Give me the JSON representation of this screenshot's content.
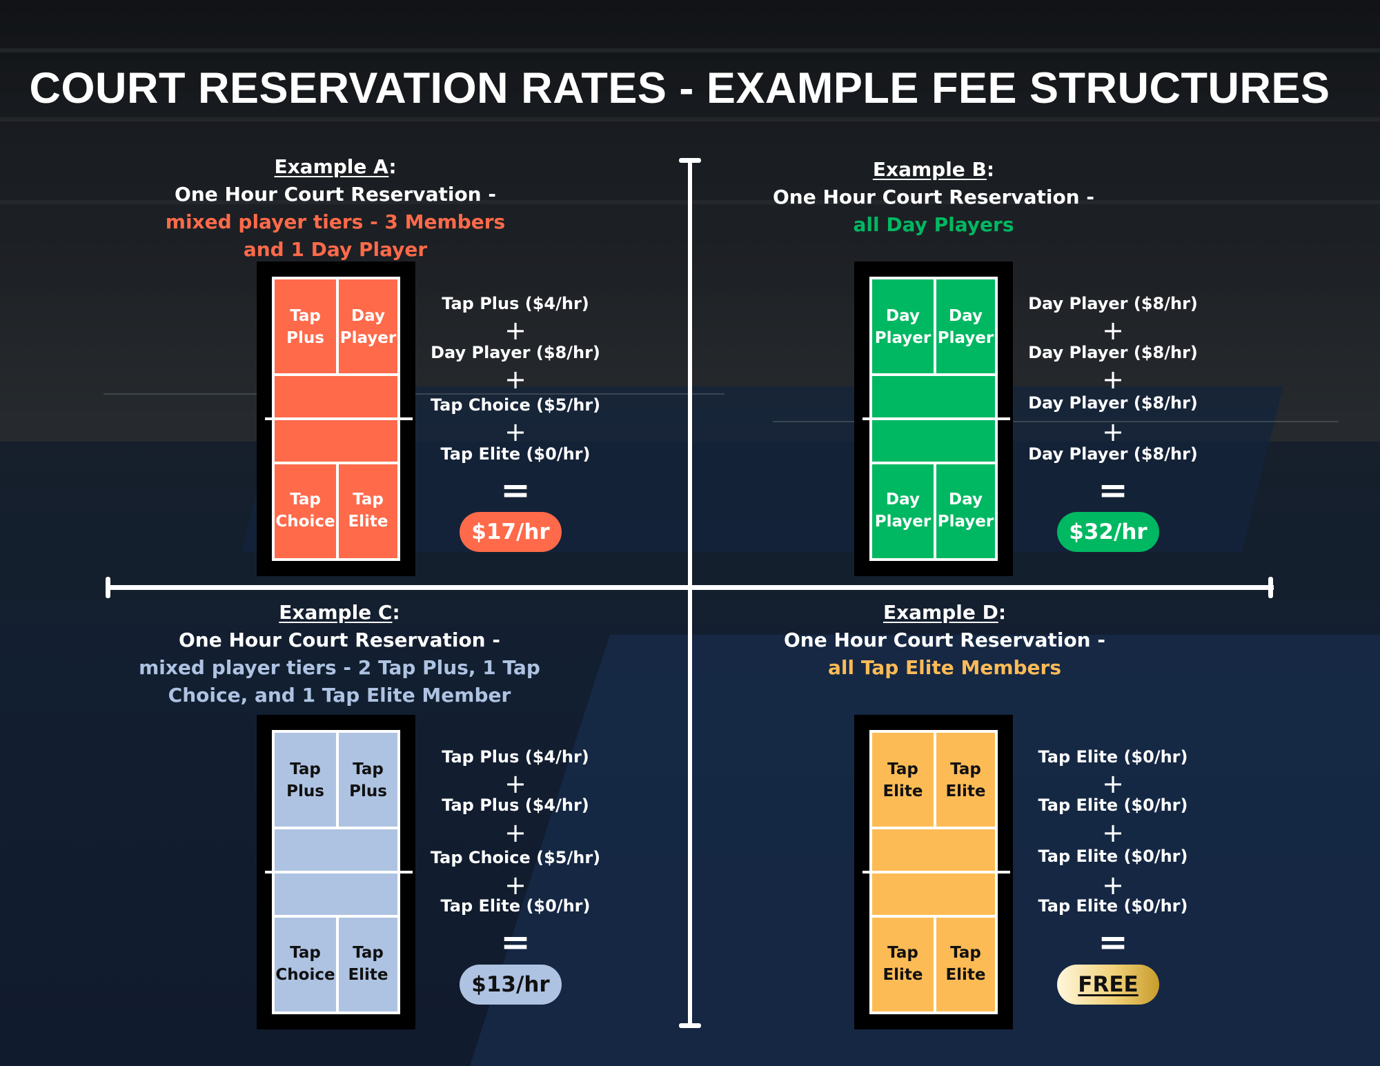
{
  "title": "COURT RESERVATION RATES - EXAMPLE FEE STRUCTURES",
  "colors": {
    "orange": "#ff6a4a",
    "green": "#00b862",
    "blue": "#aec3e2",
    "gold": "#fdbb56"
  },
  "examples": [
    {
      "id": "A",
      "label": "Example A",
      "colon": ":",
      "line1": "One Hour Court Reservation -",
      "line2": "mixed player tiers - 3 Members",
      "line3": "and 1 Day Player",
      "court": {
        "tl": [
          "Tap",
          "Plus"
        ],
        "tr": [
          "Day",
          "Player"
        ],
        "bl": [
          "Tap",
          "Choice"
        ],
        "br": [
          "Tap",
          "Elite"
        ]
      },
      "fees": [
        "Tap Plus ($4/hr)",
        "Day Player ($8/hr)",
        "Tap Choice ($5/hr)",
        "Tap Elite ($0/hr)"
      ],
      "plus": "+",
      "equals": "=",
      "total": "$17/hr"
    },
    {
      "id": "B",
      "label": "Example B",
      "colon": ":",
      "line1": "One Hour Court Reservation -",
      "line2": "all Day Players",
      "line3": "",
      "court": {
        "tl": [
          "Day",
          "Player"
        ],
        "tr": [
          "Day",
          "Player"
        ],
        "bl": [
          "Day",
          "Player"
        ],
        "br": [
          "Day",
          "Player"
        ]
      },
      "fees": [
        "Day Player ($8/hr)",
        "Day Player ($8/hr)",
        "Day Player ($8/hr)",
        "Day Player ($8/hr)"
      ],
      "plus": "+",
      "equals": "=",
      "total": "$32/hr"
    },
    {
      "id": "C",
      "label": "Example C",
      "colon": ":",
      "line1": "One Hour Court Reservation -",
      "line2": "mixed player tiers - 2 Tap Plus, 1 Tap",
      "line3": "Choice, and 1 Tap Elite Member",
      "court": {
        "tl": [
          "Tap",
          "Plus"
        ],
        "tr": [
          "Tap",
          "Plus"
        ],
        "bl": [
          "Tap",
          "Choice"
        ],
        "br": [
          "Tap",
          "Elite"
        ]
      },
      "fees": [
        "Tap Plus ($4/hr)",
        "Tap Plus ($4/hr)",
        "Tap Choice ($5/hr)",
        "Tap Elite ($0/hr)"
      ],
      "plus": "+",
      "equals": "=",
      "total": "$13/hr"
    },
    {
      "id": "D",
      "label": "Example D",
      "colon": ":",
      "line1": "One Hour Court Reservation -",
      "line2": "all Tap Elite Members",
      "line3": "",
      "court": {
        "tl": [
          "Tap",
          "Elite"
        ],
        "tr": [
          "Tap",
          "Elite"
        ],
        "bl": [
          "Tap",
          "Elite"
        ],
        "br": [
          "Tap",
          "Elite"
        ]
      },
      "fees": [
        "Tap Elite ($0/hr)",
        "Tap Elite ($0/hr)",
        "Tap Elite ($0/hr)",
        "Tap Elite ($0/hr)"
      ],
      "plus": "+",
      "equals": "=",
      "total": "FREE"
    }
  ]
}
